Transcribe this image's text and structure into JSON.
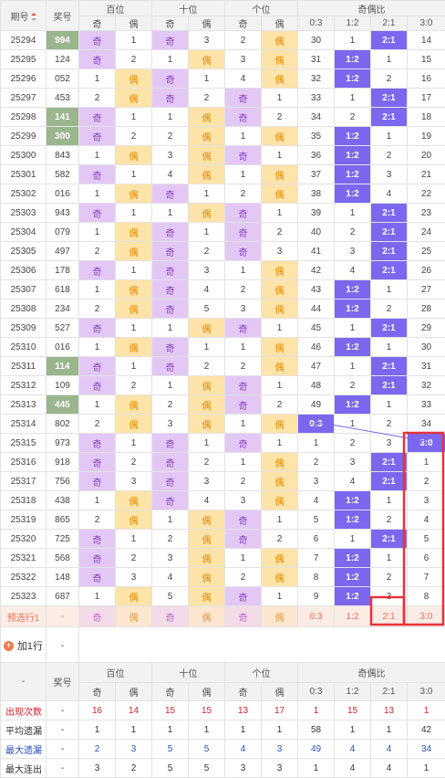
{
  "header": {
    "period_label": "期号",
    "number_label": "奖号",
    "groups": [
      "百位",
      "十位",
      "个位",
      "奇偶比"
    ],
    "odd_label": "奇",
    "even_label": "偶",
    "ratios": [
      "0:3",
      "1:2",
      "2:1",
      "3:0"
    ]
  },
  "rows": [
    {
      "q": "25294",
      "n": "994",
      "hl": true,
      "h": [
        "奇",
        1
      ],
      "t": [
        "奇",
        3
      ],
      "g": [
        2,
        "偶"
      ],
      "r": [
        30,
        1,
        "2:1",
        14
      ]
    },
    {
      "q": "25295",
      "n": "124",
      "hl": false,
      "h": [
        "奇",
        2
      ],
      "t": [
        1,
        "偶"
      ],
      "g": [
        3,
        "偶"
      ],
      "r": [
        31,
        "1:2",
        1,
        15
      ]
    },
    {
      "q": "25296",
      "n": "052",
      "hl": false,
      "h": [
        1,
        "偶"
      ],
      "t": [
        "奇",
        1
      ],
      "g": [
        4,
        "偶"
      ],
      "r": [
        32,
        "1:2",
        2,
        16
      ]
    },
    {
      "q": "25297",
      "n": "453",
      "hl": false,
      "h": [
        2,
        "偶"
      ],
      "t": [
        "奇",
        2
      ],
      "g": [
        "奇",
        1
      ],
      "r": [
        33,
        1,
        "2:1",
        17
      ]
    },
    {
      "q": "25298",
      "n": "141",
      "hl": true,
      "h": [
        "奇",
        1
      ],
      "t": [
        1,
        "偶"
      ],
      "g": [
        "奇",
        2
      ],
      "r": [
        34,
        2,
        "2:1",
        18
      ]
    },
    {
      "q": "25299",
      "n": "300",
      "hl": true,
      "h": [
        "奇",
        2
      ],
      "t": [
        2,
        "偶"
      ],
      "g": [
        1,
        "偶"
      ],
      "r": [
        35,
        "1:2",
        1,
        19
      ]
    },
    {
      "q": "25300",
      "n": "843",
      "hl": false,
      "h": [
        1,
        "偶"
      ],
      "t": [
        3,
        "偶"
      ],
      "g": [
        "奇",
        1
      ],
      "r": [
        36,
        "1:2",
        2,
        20
      ]
    },
    {
      "q": "25301",
      "n": "582",
      "hl": false,
      "h": [
        "奇",
        1
      ],
      "t": [
        4,
        "偶"
      ],
      "g": [
        1,
        "偶"
      ],
      "r": [
        37,
        "1:2",
        3,
        21
      ]
    },
    {
      "q": "25302",
      "n": "016",
      "hl": false,
      "h": [
        1,
        "偶"
      ],
      "t": [
        "奇",
        1
      ],
      "g": [
        2,
        "偶"
      ],
      "r": [
        38,
        "1:2",
        4,
        22
      ]
    },
    {
      "q": "25303",
      "n": "943",
      "hl": false,
      "h": [
        "奇",
        1
      ],
      "t": [
        1,
        "偶"
      ],
      "g": [
        "奇",
        1
      ],
      "r": [
        39,
        1,
        "2:1",
        23
      ]
    },
    {
      "q": "25304",
      "n": "079",
      "hl": false,
      "h": [
        1,
        "偶"
      ],
      "t": [
        "奇",
        1
      ],
      "g": [
        "奇",
        2
      ],
      "r": [
        40,
        2,
        "2:1",
        24
      ]
    },
    {
      "q": "25305",
      "n": "497",
      "hl": false,
      "h": [
        2,
        "偶"
      ],
      "t": [
        "奇",
        2
      ],
      "g": [
        "奇",
        3
      ],
      "r": [
        41,
        3,
        "2:1",
        25
      ]
    },
    {
      "q": "25306",
      "n": "178",
      "hl": false,
      "h": [
        "奇",
        1
      ],
      "t": [
        "奇",
        3
      ],
      "g": [
        1,
        "偶"
      ],
      "r": [
        42,
        4,
        "2:1",
        26
      ]
    },
    {
      "q": "25307",
      "n": "618",
      "hl": false,
      "h": [
        1,
        "偶"
      ],
      "t": [
        "奇",
        4
      ],
      "g": [
        2,
        "偶"
      ],
      "r": [
        43,
        "1:2",
        1,
        27
      ]
    },
    {
      "q": "25308",
      "n": "234",
      "hl": false,
      "h": [
        2,
        "偶"
      ],
      "t": [
        "奇",
        5
      ],
      "g": [
        3,
        "偶"
      ],
      "r": [
        44,
        "1:2",
        2,
        28
      ]
    },
    {
      "q": "25309",
      "n": "527",
      "hl": false,
      "h": [
        "奇",
        1
      ],
      "t": [
        1,
        "偶"
      ],
      "g": [
        "奇",
        1
      ],
      "r": [
        45,
        1,
        "2:1",
        29
      ]
    },
    {
      "q": "25310",
      "n": "016",
      "hl": false,
      "h": [
        1,
        "偶"
      ],
      "t": [
        "奇",
        1
      ],
      "g": [
        1,
        "偶"
      ],
      "r": [
        46,
        "1:2",
        1,
        30
      ]
    },
    {
      "q": "25311",
      "n": "114",
      "hl": true,
      "h": [
        "奇",
        1
      ],
      "t": [
        "奇",
        2
      ],
      "g": [
        2,
        "偶"
      ],
      "r": [
        47,
        1,
        "2:1",
        31
      ]
    },
    {
      "q": "25312",
      "n": "109",
      "hl": false,
      "h": [
        "奇",
        2
      ],
      "t": [
        1,
        "偶"
      ],
      "g": [
        "奇",
        1
      ],
      "r": [
        48,
        2,
        "2:1",
        32
      ]
    },
    {
      "q": "25313",
      "n": "445",
      "hl": true,
      "h": [
        1,
        "偶"
      ],
      "t": [
        2,
        "偶"
      ],
      "g": [
        "奇",
        2
      ],
      "r": [
        49,
        "1:2",
        1,
        33
      ]
    },
    {
      "q": "25314",
      "n": "802",
      "hl": false,
      "h": [
        2,
        "偶"
      ],
      "t": [
        3,
        "偶"
      ],
      "g": [
        1,
        "偶"
      ],
      "r": [
        "0:3",
        1,
        2,
        34
      ]
    },
    {
      "q": "25315",
      "n": "973",
      "hl": false,
      "h": [
        "奇",
        1
      ],
      "t": [
        "奇",
        1
      ],
      "g": [
        "奇",
        1
      ],
      "r": [
        1,
        2,
        3,
        "3:0"
      ]
    },
    {
      "q": "25316",
      "n": "918",
      "hl": false,
      "h": [
        "奇",
        2
      ],
      "t": [
        "奇",
        2
      ],
      "g": [
        1,
        "偶"
      ],
      "r": [
        2,
        3,
        "2:1",
        1
      ]
    },
    {
      "q": "25317",
      "n": "756",
      "hl": false,
      "h": [
        "奇",
        3
      ],
      "t": [
        "奇",
        3
      ],
      "g": [
        2,
        "偶"
      ],
      "r": [
        3,
        4,
        "2:1",
        2
      ]
    },
    {
      "q": "25318",
      "n": "438",
      "hl": false,
      "h": [
        1,
        "偶"
      ],
      "t": [
        "奇",
        4
      ],
      "g": [
        3,
        "偶"
      ],
      "r": [
        4,
        "1:2",
        1,
        3
      ]
    },
    {
      "q": "25319",
      "n": "865",
      "hl": false,
      "h": [
        2,
        "偶"
      ],
      "t": [
        1,
        "偶"
      ],
      "g": [
        "奇",
        1
      ],
      "r": [
        5,
        "1:2",
        2,
        4
      ]
    },
    {
      "q": "25320",
      "n": "725",
      "hl": false,
      "h": [
        "奇",
        1
      ],
      "t": [
        2,
        "偶"
      ],
      "g": [
        "奇",
        2
      ],
      "r": [
        6,
        1,
        "2:1",
        5
      ]
    },
    {
      "q": "25321",
      "n": "568",
      "hl": false,
      "h": [
        "奇",
        2
      ],
      "t": [
        3,
        "偶"
      ],
      "g": [
        1,
        "偶"
      ],
      "r": [
        7,
        "1:2",
        1,
        6
      ]
    },
    {
      "q": "25322",
      "n": "148",
      "hl": false,
      "h": [
        "奇",
        3
      ],
      "t": [
        4,
        "偶"
      ],
      "g": [
        2,
        "偶"
      ],
      "r": [
        8,
        "1:2",
        2,
        7
      ]
    },
    {
      "q": "25323",
      "n": "687",
      "hl": false,
      "h": [
        1,
        "偶"
      ],
      "t": [
        5,
        "偶"
      ],
      "g": [
        "奇",
        1
      ],
      "r": [
        9,
        "1:2",
        3,
        8
      ]
    }
  ],
  "prediction": {
    "label": "预选行1",
    "number": "-",
    "cells": [
      "奇",
      "偶",
      "奇",
      "偶",
      "奇",
      "偶",
      "0:3",
      "1:2",
      "2:1",
      "3:0"
    ]
  },
  "add_row": {
    "label": "加1行",
    "number": "-"
  },
  "stats": {
    "period_label": "-",
    "number_label": "奖号",
    "rows": [
      {
        "label": "出现次数",
        "n": "-",
        "v": [
          16,
          14,
          15,
          15,
          13,
          17,
          1,
          15,
          13,
          1
        ],
        "color": "#d0232a"
      },
      {
        "label": "平均遗漏",
        "n": "-",
        "v": [
          1,
          1,
          1,
          1,
          1,
          1,
          58,
          1,
          1,
          42
        ],
        "color": "#333333"
      },
      {
        "label": "最大遗漏",
        "n": "-",
        "v": [
          2,
          3,
          5,
          5,
          4,
          3,
          49,
          4,
          4,
          34
        ],
        "color": "#2a4fbf"
      },
      {
        "label": "最大连出",
        "n": "-",
        "v": [
          3,
          2,
          5,
          5,
          3,
          3,
          1,
          4,
          4,
          1
        ],
        "color": "#333333"
      }
    ]
  },
  "colors": {
    "odd_bg": "#e3c8f5",
    "even_bg": "#ffe3a8",
    "ratio_bg": "#7b68ee",
    "highlight_bg": "#9bb58f",
    "select_box": "#e8323c"
  }
}
